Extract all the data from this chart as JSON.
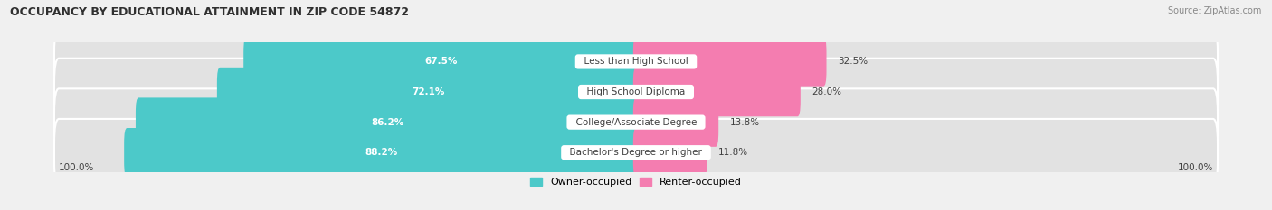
{
  "title": "OCCUPANCY BY EDUCATIONAL ATTAINMENT IN ZIP CODE 54872",
  "source": "Source: ZipAtlas.com",
  "categories": [
    "Less than High School",
    "High School Diploma",
    "College/Associate Degree",
    "Bachelor's Degree or higher"
  ],
  "owner_values": [
    67.5,
    72.1,
    86.2,
    88.2
  ],
  "renter_values": [
    32.5,
    28.0,
    13.8,
    11.8
  ],
  "owner_color": "#4cc9c9",
  "renter_color": "#f47db0",
  "bg_color": "#f0f0f0",
  "bar_bg_color": "#e2e2e2",
  "title_color": "#303030",
  "text_color": "#404040",
  "bar_height": 0.62,
  "legend_owner": "Owner-occupied",
  "legend_renter": "Renter-occupied",
  "axis_label_left": "100.0%",
  "axis_label_right": "100.0%"
}
